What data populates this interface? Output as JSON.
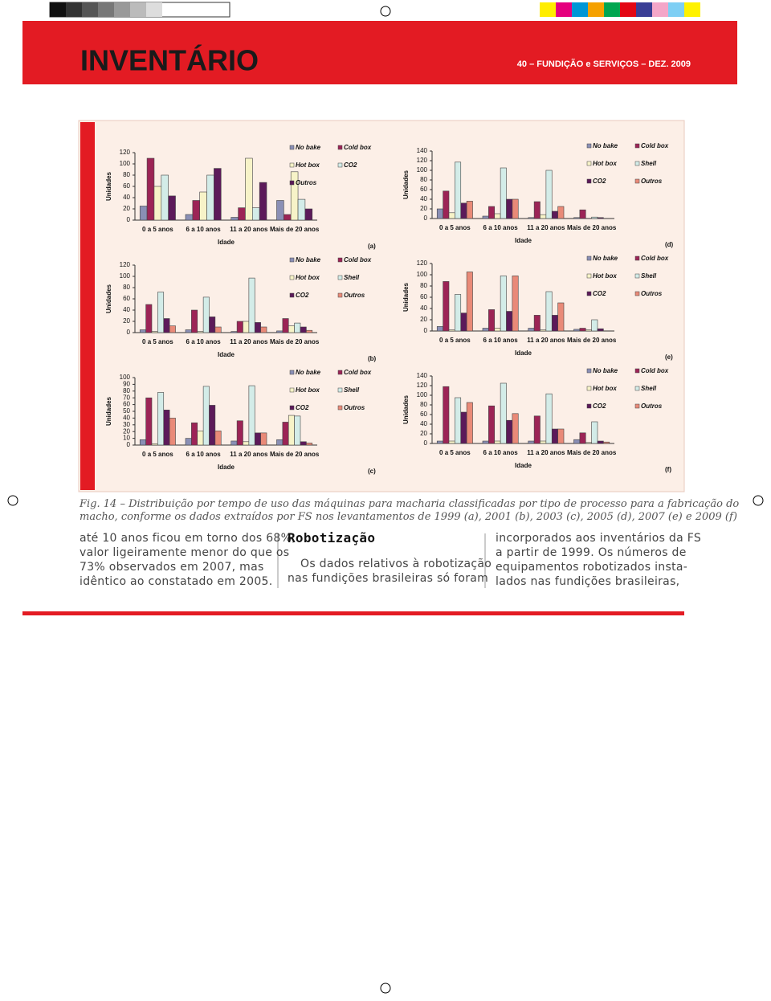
{
  "header": {
    "title": "INVENTÁRIO",
    "issue": "40 – FUNDIÇÃO e SERVIÇOS – DEZ. 2009"
  },
  "chart_data": [
    {
      "type": "bar",
      "panel": "(a)",
      "ylabel": "Unidades",
      "xlabel": "Idade",
      "categories": [
        "0 a 5 anos",
        "6 a 10 anos",
        "11 a 20 anos",
        "Mais de 20 anos"
      ],
      "ylim": [
        0,
        120
      ],
      "yticks": [
        0,
        20,
        40,
        60,
        80,
        100,
        120
      ],
      "series": [
        {
          "name": "No bake",
          "color": "#8a8fb5",
          "values": [
            25,
            10,
            5,
            35
          ]
        },
        {
          "name": "Cold box",
          "color": "#9c2456",
          "values": [
            110,
            35,
            22,
            10
          ]
        },
        {
          "name": "Hot box",
          "color": "#f7f3c8",
          "values": [
            60,
            50,
            110,
            86
          ]
        },
        {
          "name": "CO2",
          "color": "#d3ece8",
          "values": [
            80,
            80,
            22,
            37
          ]
        },
        {
          "name": "Outros",
          "color": "#5c1a5a",
          "values": [
            43,
            92,
            67,
            20
          ]
        }
      ]
    },
    {
      "type": "bar",
      "panel": "(b)",
      "ylabel": "Unidades",
      "xlabel": "Idade",
      "categories": [
        "0 a 5 anos",
        "6 a 10 anos",
        "11 a 20 anos",
        "Mais de 20 anos"
      ],
      "ylim": [
        0,
        120
      ],
      "yticks": [
        0,
        20,
        40,
        60,
        80,
        100,
        120
      ],
      "series": [
        {
          "name": "No bake",
          "color": "#8a8fb5",
          "values": [
            5,
            5,
            2,
            3
          ]
        },
        {
          "name": "Cold box",
          "color": "#9c2456",
          "values": [
            50,
            40,
            20,
            25
          ]
        },
        {
          "name": "Hot box",
          "color": "#f7f3c8",
          "values": [
            2,
            2,
            20,
            12
          ]
        },
        {
          "name": "Shell",
          "color": "#d3ece8",
          "values": [
            72,
            63,
            97,
            17
          ]
        },
        {
          "name": "CO2",
          "color": "#5c1a5a",
          "values": [
            25,
            28,
            18,
            10
          ]
        },
        {
          "name": "Outros",
          "color": "#e98a78",
          "values": [
            12,
            10,
            10,
            4
          ]
        }
      ]
    },
    {
      "type": "bar",
      "panel": "(c)",
      "ylabel": "Unidades",
      "xlabel": "Idade",
      "categories": [
        "0 a 5 anos",
        "6 a 10 anos",
        "11 a 20 anos",
        "Mais de 20 anos"
      ],
      "ylim": [
        0,
        100
      ],
      "yticks": [
        0,
        10,
        20,
        30,
        40,
        50,
        60,
        70,
        80,
        90,
        100
      ],
      "series": [
        {
          "name": "No bake",
          "color": "#8a8fb5",
          "values": [
            8,
            10,
            6,
            8
          ]
        },
        {
          "name": "Cold box",
          "color": "#9c2456",
          "values": [
            70,
            33,
            36,
            34
          ]
        },
        {
          "name": "Hot box",
          "color": "#f7f3c8",
          "values": [
            2,
            21,
            5,
            44
          ]
        },
        {
          "name": "Shell",
          "color": "#d3ece8",
          "values": [
            78,
            87,
            88,
            43
          ]
        },
        {
          "name": "CO2",
          "color": "#5c1a5a",
          "values": [
            52,
            59,
            18,
            5
          ]
        },
        {
          "name": "Outros",
          "color": "#e98a78",
          "values": [
            40,
            21,
            18,
            3
          ]
        }
      ]
    },
    {
      "type": "bar",
      "panel": "(d)",
      "ylabel": "Unidades",
      "xlabel": "Idade",
      "categories": [
        "0 a 5 anos",
        "6 a 10 anos",
        "11 a 20 anos",
        "Mais de 20 anos"
      ],
      "ylim": [
        0,
        140
      ],
      "yticks": [
        0,
        20,
        40,
        60,
        80,
        100,
        120,
        140
      ],
      "series": [
        {
          "name": "No bake",
          "color": "#8a8fb5",
          "values": [
            20,
            5,
            2,
            2
          ]
        },
        {
          "name": "Cold box",
          "color": "#9c2456",
          "values": [
            57,
            25,
            35,
            18
          ]
        },
        {
          "name": "Hot box",
          "color": "#f7f3c8",
          "values": [
            12,
            10,
            8,
            0
          ]
        },
        {
          "name": "Shell",
          "color": "#d3ece8",
          "values": [
            117,
            105,
            100,
            3
          ]
        },
        {
          "name": "CO2",
          "color": "#5c1a5a",
          "values": [
            32,
            40,
            15,
            2
          ]
        },
        {
          "name": "Outros",
          "color": "#e98a78",
          "values": [
            36,
            40,
            25,
            0
          ]
        }
      ]
    },
    {
      "type": "bar",
      "panel": "(e)",
      "ylabel": "Unidades",
      "xlabel": "Idade",
      "categories": [
        "0 a 5 anos",
        "6 a 10 anos",
        "11 a 20 anos",
        "Mais de 20 anos"
      ],
      "ylim": [
        0,
        120
      ],
      "yticks": [
        0,
        20,
        40,
        60,
        80,
        100,
        120
      ],
      "series": [
        {
          "name": "No bake",
          "color": "#8a8fb5",
          "values": [
            8,
            5,
            5,
            3
          ]
        },
        {
          "name": "Cold box",
          "color": "#9c2456",
          "values": [
            88,
            38,
            28,
            5
          ]
        },
        {
          "name": "Hot box",
          "color": "#f7f3c8",
          "values": [
            2,
            5,
            2,
            2
          ]
        },
        {
          "name": "Shell",
          "color": "#d3ece8",
          "values": [
            65,
            98,
            70,
            20
          ]
        },
        {
          "name": "CO2",
          "color": "#5c1a5a",
          "values": [
            32,
            35,
            28,
            4
          ]
        },
        {
          "name": "Outros",
          "color": "#e98a78",
          "values": [
            105,
            98,
            50,
            0
          ]
        }
      ]
    },
    {
      "type": "bar",
      "panel": "(f)",
      "ylabel": "Unidades",
      "xlabel": "Idade",
      "categories": [
        "0 a 5 anos",
        "6 a 10 anos",
        "11 a 20 anos",
        "Mais de 20 anos"
      ],
      "ylim": [
        0,
        140
      ],
      "yticks": [
        0,
        20,
        40,
        60,
        80,
        100,
        120,
        140
      ],
      "series": [
        {
          "name": "No bake",
          "color": "#8a8fb5",
          "values": [
            5,
            5,
            5,
            8
          ]
        },
        {
          "name": "Cold box",
          "color": "#9c2456",
          "values": [
            118,
            78,
            57,
            22
          ]
        },
        {
          "name": "Hot box",
          "color": "#f7f3c8",
          "values": [
            5,
            5,
            5,
            2
          ]
        },
        {
          "name": "Shell",
          "color": "#d3ece8",
          "values": [
            95,
            125,
            103,
            45
          ]
        },
        {
          "name": "CO2",
          "color": "#5c1a5a",
          "values": [
            65,
            48,
            30,
            5
          ]
        },
        {
          "name": "Outros",
          "color": "#e98a78",
          "values": [
            85,
            62,
            30,
            3
          ]
        }
      ]
    }
  ],
  "caption": [
    "Fig. 14 – Distribuição por tempo de uso das máquinas para macharia classificadas por tipo de processo para a fabricação do",
    "macho, conforme os dados extraídos por FS nos levantamentos de 1999 (a), 2001 (b), 2003 (c), 2005 (d), 2007 (e) e 2009 (f)"
  ],
  "columns": [
    {
      "lines": [
        "até 10 anos ficou em torno dos 68%,",
        "valor ligeiramente menor do que os",
        "73% observados em 2007, mas",
        "idêntico ao constatado em 2005."
      ]
    },
    {
      "heading": "Robotização",
      "lines": [
        "Os dados relativos à robotização",
        "nas fundições brasileiras só foram"
      ]
    },
    {
      "lines": [
        "incorporados aos inventários da FS",
        "a partir de 1999. Os números de",
        "equipamentos robotizados insta-",
        "lados nas fundições brasileiras,"
      ]
    }
  ]
}
